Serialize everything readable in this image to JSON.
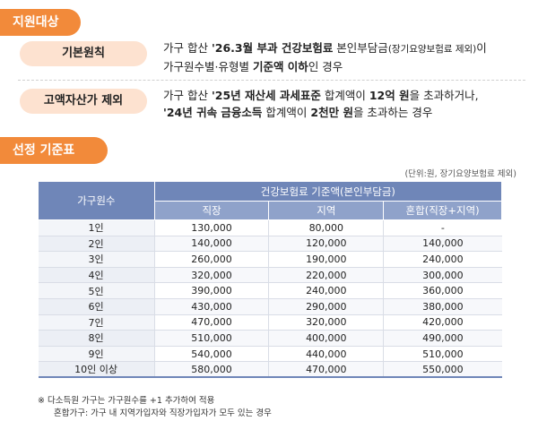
{
  "section1": {
    "title": "지원대상",
    "rows": [
      {
        "label": "기본원칙",
        "line1_a": "가구 합산 ",
        "line1_b": "'26.3월 부과 건강보험료",
        "line1_c": " 본인부담금",
        "line1_d": "(장기요양보험료 제외)",
        "line1_e": "이",
        "line2_a": "가구원수별·유형별 ",
        "line2_b": "기준액 이하",
        "line2_c": "인 경우"
      },
      {
        "label": "고액자산가 제외",
        "line1_a": "가구 합산 ",
        "line1_b": "'25년 재산세 과세표준",
        "line1_c": " 합계액이 ",
        "line1_d": "12억 원",
        "line1_e": "을 초과하거나,",
        "line2_a": "'24년 귀속 금융소득",
        "line2_b": " 합계액이 ",
        "line2_c": "2천만 원",
        "line2_d": "을 초과하는 경우"
      }
    ]
  },
  "section2": {
    "title": "선정 기준표",
    "unit_note": "(단위:원, 장기요양보험료 제외)",
    "table": {
      "header_corner": "가구원수",
      "header_group": "건강보험료 기준액(본인부담금)",
      "columns": [
        "직장",
        "지역",
        "혼합(직장+지역)"
      ],
      "rows": [
        [
          "1인",
          "130,000",
          "80,000",
          "-"
        ],
        [
          "2인",
          "140,000",
          "120,000",
          "140,000"
        ],
        [
          "3인",
          "260,000",
          "190,000",
          "240,000"
        ],
        [
          "4인",
          "320,000",
          "220,000",
          "300,000"
        ],
        [
          "5인",
          "390,000",
          "240,000",
          "360,000"
        ],
        [
          "6인",
          "430,000",
          "290,000",
          "380,000"
        ],
        [
          "7인",
          "470,000",
          "320,000",
          "420,000"
        ],
        [
          "8인",
          "510,000",
          "400,000",
          "490,000"
        ],
        [
          "9인",
          "540,000",
          "440,000",
          "510,000"
        ],
        [
          "10인 이상",
          "580,000",
          "470,000",
          "550,000"
        ]
      ]
    },
    "footnote_1": "※ 다소득원 가구는 가구원수를 +1 추가하여 적용",
    "footnote_2": "혼합가구: 가구 내 지역가입자와 직장가입자가 모두 있는 경우"
  },
  "colors": {
    "accent_orange": "#f28a3a",
    "pill_bg": "#fde2d0",
    "table_header": "#6f86b8",
    "table_subheader": "#8fa2ca"
  }
}
